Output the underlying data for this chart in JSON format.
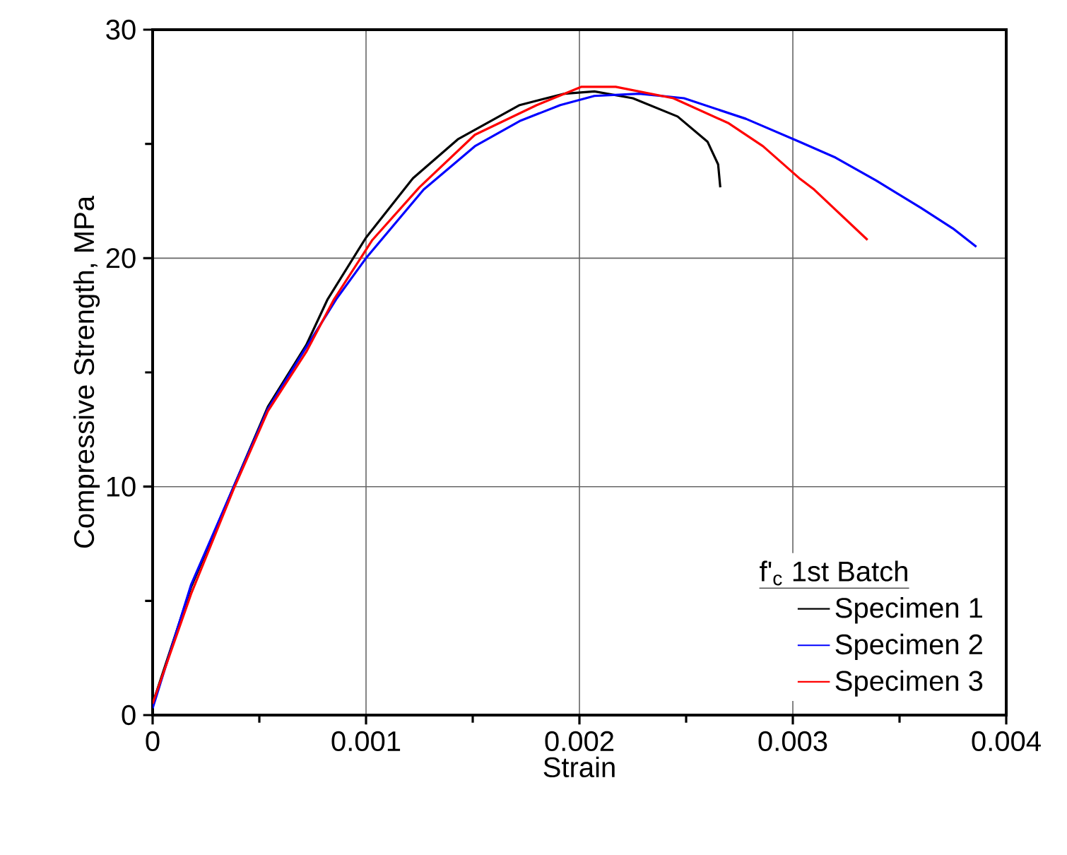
{
  "chart_data": {
    "type": "line",
    "xlabel": "Strain",
    "ylabel": "Compressive Strength, MPa",
    "legend_title": "f'$_{c}$ 1st Batch",
    "xlim": [
      0,
      0.004
    ],
    "ylim": [
      0,
      30
    ],
    "xticks": [
      0,
      0.001,
      0.002,
      0.003,
      0.004
    ],
    "yticks": [
      0,
      10,
      20,
      30
    ],
    "grid": true,
    "legend": "bottom right",
    "line_style": "solid",
    "marker": "none",
    "series": [
      {
        "name": "Specimen 1",
        "color": "#000000",
        "x": [
          0,
          0.00018,
          0.00038,
          0.00054,
          0.00072,
          0.00082,
          0.001,
          0.00122,
          0.00143,
          0.00172,
          0.00193,
          0.00207,
          0.00225,
          0.00246,
          0.0026,
          0.00265,
          0.00266
        ],
        "values": [
          0.5,
          5.6,
          10,
          13.5,
          16.2,
          18.2,
          20.9,
          23.5,
          25.2,
          26.7,
          27.2,
          27.3,
          27.0,
          26.2,
          25.1,
          24.1,
          23.1
        ]
      },
      {
        "name": "Specimen 2",
        "color": "#0000ff",
        "x": [
          0,
          0.00018,
          0.00038,
          0.00054,
          0.00072,
          0.00086,
          0.001,
          0.00127,
          0.00151,
          0.00172,
          0.00191,
          0.00207,
          0.00228,
          0.00249,
          0.00278,
          0.00303,
          0.0032,
          0.00339,
          0.0036,
          0.00375,
          0.00386
        ],
        "values": [
          0.3,
          5.7,
          10,
          13.4,
          16.1,
          18.2,
          20.0,
          23.0,
          24.9,
          26.0,
          26.7,
          27.1,
          27.2,
          27.0,
          26.1,
          25.1,
          24.4,
          23.4,
          22.2,
          21.3,
          20.5
        ]
      },
      {
        "name": "Specimen 3",
        "color": "#ff0000",
        "x": [
          0,
          0.00018,
          0.00038,
          0.00054,
          0.00072,
          0.00085,
          0.00103,
          0.00125,
          0.00151,
          0.0018,
          0.00201,
          0.00217,
          0.00244,
          0.0027,
          0.00286,
          0.00303,
          0.0031,
          0.00335
        ],
        "values": [
          0.5,
          5.3,
          9.9,
          13.3,
          15.9,
          18.2,
          20.8,
          23.1,
          25.4,
          26.7,
          27.5,
          27.5,
          27.0,
          25.9,
          24.9,
          23.5,
          23.0,
          20.8
        ]
      }
    ]
  }
}
